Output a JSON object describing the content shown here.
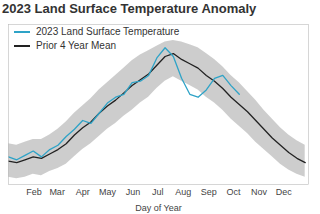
{
  "chart_data": {
    "type": "line",
    "title": "2023 Land Surface Temperature Anomaly",
    "xlabel": "Day of Year",
    "x": [
      1,
      11,
      21,
      31,
      41,
      51,
      61,
      71,
      81,
      91,
      101,
      111,
      121,
      131,
      141,
      151,
      161,
      171,
      181,
      191,
      201,
      211,
      221,
      231,
      241,
      251,
      261,
      271,
      281,
      291,
      301,
      311,
      321,
      331,
      341,
      351,
      361
    ],
    "series": [
      {
        "name": "2023 Land Surface Temperature",
        "color": "#2ea3c7",
        "values": [
          1.9,
          1.7,
          2.0,
          2.3,
          1.9,
          2.4,
          2.7,
          3.3,
          3.8,
          4.4,
          4.2,
          4.9,
          5.6,
          6.0,
          6.2,
          7.0,
          7.1,
          7.5,
          8.7,
          9.4,
          8.8,
          7.3,
          6.2,
          6.0,
          6.5,
          7.3,
          7.5,
          6.8,
          6.2,
          null,
          null,
          null,
          null,
          null,
          null,
          null,
          null
        ]
      },
      {
        "name": "Prior 4 Year Mean",
        "color": "#222222",
        "values": [
          1.6,
          1.5,
          1.7,
          1.9,
          1.8,
          2.1,
          2.4,
          2.8,
          3.4,
          3.9,
          4.3,
          4.9,
          5.4,
          5.8,
          6.3,
          6.8,
          7.2,
          7.6,
          8.2,
          8.8,
          9.0,
          8.6,
          8.3,
          8.0,
          7.5,
          7.1,
          6.6,
          6.0,
          5.5,
          5.0,
          4.4,
          3.8,
          3.2,
          2.7,
          2.2,
          1.8,
          1.5
        ]
      }
    ],
    "band": {
      "color": "#c8c8c8",
      "lower": [
        0.5,
        0.4,
        0.5,
        0.7,
        0.6,
        0.9,
        1.1,
        1.4,
        1.9,
        2.4,
        2.8,
        3.3,
        3.8,
        4.2,
        4.7,
        5.1,
        5.6,
        6.0,
        6.6,
        7.1,
        7.4,
        7.1,
        6.8,
        6.5,
        6.0,
        5.6,
        5.1,
        4.5,
        4.0,
        3.5,
        2.9,
        2.4,
        1.9,
        1.4,
        1.0,
        0.7,
        0.5
      ],
      "upper": [
        2.8,
        2.7,
        2.9,
        3.1,
        3.1,
        3.4,
        3.8,
        4.3,
        4.9,
        5.4,
        5.9,
        6.5,
        7.0,
        7.5,
        8.0,
        8.5,
        8.9,
        9.2,
        9.5,
        9.8,
        9.9,
        9.8,
        9.6,
        9.4,
        9.0,
        8.6,
        8.1,
        7.5,
        7.0,
        6.4,
        5.8,
        5.1,
        4.5,
        3.9,
        3.4,
        3.0,
        2.7
      ]
    },
    "xlim": [
      1,
      365
    ],
    "xticks": [
      {
        "value": 32,
        "label": "Feb"
      },
      {
        "value": 60,
        "label": "Mar"
      },
      {
        "value": 91,
        "label": "Apr"
      },
      {
        "value": 121,
        "label": "May"
      },
      {
        "value": 152,
        "label": "Jun"
      },
      {
        "value": 182,
        "label": "Jul"
      },
      {
        "value": 213,
        "label": "Aug"
      },
      {
        "value": 244,
        "label": "Sep"
      },
      {
        "value": 274,
        "label": "Oct"
      },
      {
        "value": 305,
        "label": "Nov"
      },
      {
        "value": 335,
        "label": "Dec"
      }
    ],
    "ylim": [
      0,
      11
    ],
    "tick_labels": "x",
    "legend": "top-left"
  }
}
